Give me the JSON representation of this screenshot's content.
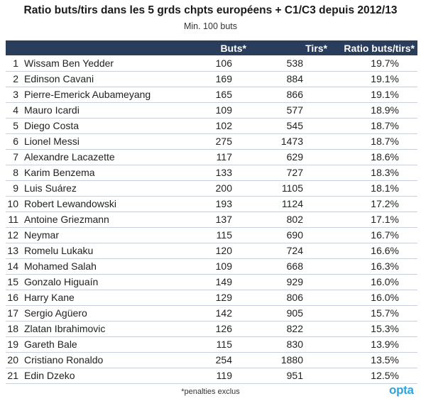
{
  "chart_data": {
    "type": "table",
    "title": "Ratio buts/tirs dans les 5 grds chpts européens + C1/C3 depuis 2012/13",
    "subtitle": "Min. 100 buts",
    "columns": [
      "",
      "Buts*",
      "Tirs*",
      "Ratio buts/tirs*"
    ],
    "rows": [
      {
        "rank": "1",
        "name": "Wissam Ben Yedder",
        "buts": "106",
        "tirs": "538",
        "ratio": "19.7%"
      },
      {
        "rank": "2",
        "name": "Edinson Cavani",
        "buts": "169",
        "tirs": "884",
        "ratio": "19.1%"
      },
      {
        "rank": "3",
        "name": "Pierre-Emerick Aubameyang",
        "buts": "165",
        "tirs": "866",
        "ratio": "19.1%"
      },
      {
        "rank": "4",
        "name": "Mauro Icardi",
        "buts": "109",
        "tirs": "577",
        "ratio": "18.9%"
      },
      {
        "rank": "5",
        "name": "Diego Costa",
        "buts": "102",
        "tirs": "545",
        "ratio": "18.7%"
      },
      {
        "rank": "6",
        "name": "Lionel Messi",
        "buts": "275",
        "tirs": "1473",
        "ratio": "18.7%"
      },
      {
        "rank": "7",
        "name": "Alexandre Lacazette",
        "buts": "117",
        "tirs": "629",
        "ratio": "18.6%"
      },
      {
        "rank": "8",
        "name": "Karim Benzema",
        "buts": "133",
        "tirs": "727",
        "ratio": "18.3%"
      },
      {
        "rank": "9",
        "name": "Luis Suárez",
        "buts": "200",
        "tirs": "1105",
        "ratio": "18.1%"
      },
      {
        "rank": "10",
        "name": "Robert Lewandowski",
        "buts": "193",
        "tirs": "1124",
        "ratio": "17.2%"
      },
      {
        "rank": "11",
        "name": "Antoine Griezmann",
        "buts": "137",
        "tirs": "802",
        "ratio": "17.1%"
      },
      {
        "rank": "12",
        "name": "Neymar",
        "buts": "115",
        "tirs": "690",
        "ratio": "16.7%"
      },
      {
        "rank": "13",
        "name": "Romelu Lukaku",
        "buts": "120",
        "tirs": "724",
        "ratio": "16.6%"
      },
      {
        "rank": "14",
        "name": "Mohamed Salah",
        "buts": "109",
        "tirs": "668",
        "ratio": "16.3%"
      },
      {
        "rank": "15",
        "name": "Gonzalo Higuaín",
        "buts": "149",
        "tirs": "929",
        "ratio": "16.0%"
      },
      {
        "rank": "16",
        "name": "Harry Kane",
        "buts": "129",
        "tirs": "806",
        "ratio": "16.0%"
      },
      {
        "rank": "17",
        "name": "Sergio Agüero",
        "buts": "142",
        "tirs": "905",
        "ratio": "15.7%"
      },
      {
        "rank": "18",
        "name": "Zlatan Ibrahimovic",
        "buts": "126",
        "tirs": "822",
        "ratio": "15.3%"
      },
      {
        "rank": "19",
        "name": "Gareth Bale",
        "buts": "115",
        "tirs": "830",
        "ratio": "13.9%"
      },
      {
        "rank": "20",
        "name": "Cristiano Ronaldo",
        "buts": "254",
        "tirs": "1880",
        "ratio": "13.5%"
      },
      {
        "rank": "21",
        "name": "Edin Dzeko",
        "buts": "119",
        "tirs": "951",
        "ratio": "12.5%"
      }
    ]
  },
  "footnote": "*penalties exclus",
  "logo": "opta",
  "colors": {
    "header_bg": "#2a3e5c",
    "header_text": "#ffffff",
    "row_border": "#c9d0db",
    "logo": "#29a7df"
  }
}
